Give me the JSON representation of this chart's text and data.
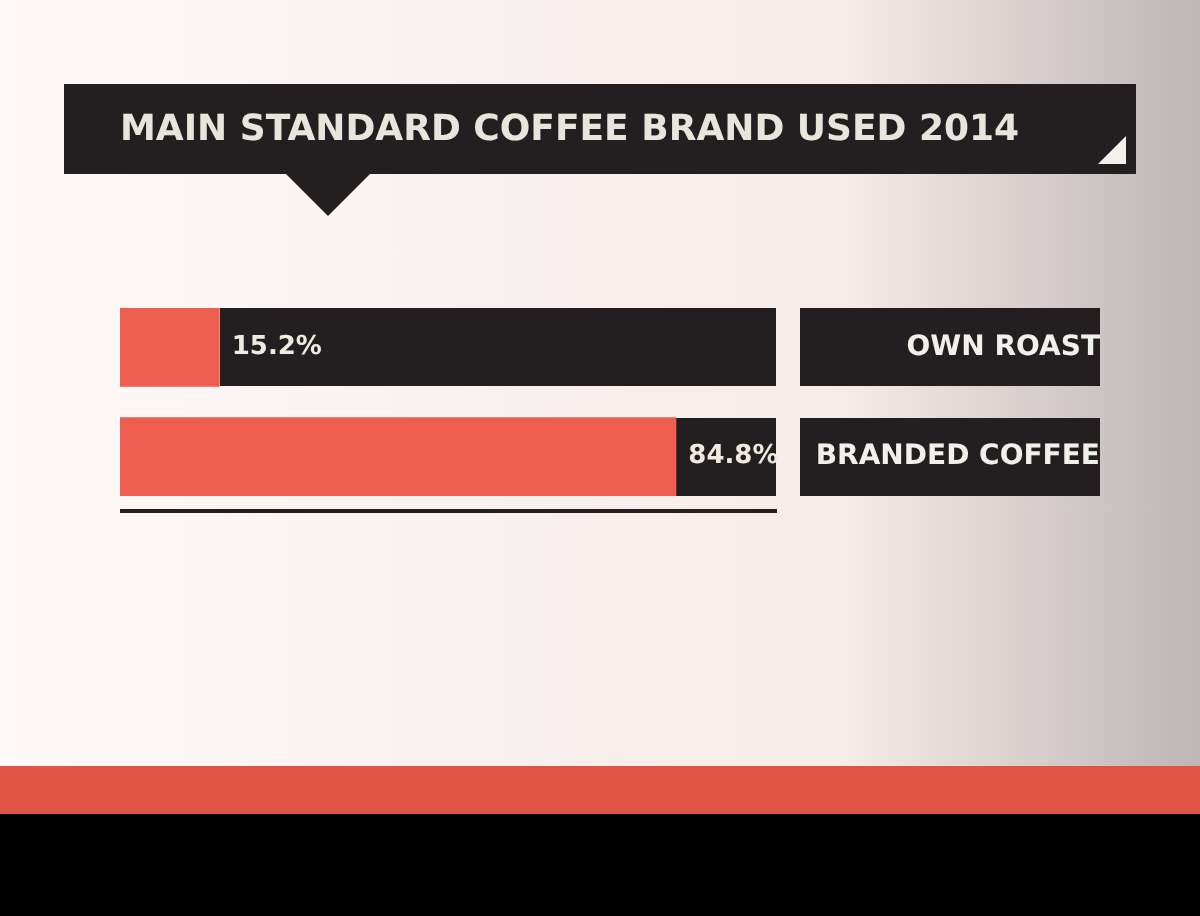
{
  "chart_data": {
    "type": "bar",
    "orientation": "horizontal",
    "title": "MAIN STANDARD COFFEE BRAND USED 2014",
    "categories": [
      "OWN ROAST",
      "BRANDED COFFEE"
    ],
    "values": [
      15.2,
      84.8
    ],
    "color": "#ee5e50",
    "value_labels": [
      "15.2%",
      "84.8%"
    ],
    "xlim": [
      0,
      100
    ],
    "tick_labels": "y",
    "legend": false
  }
}
